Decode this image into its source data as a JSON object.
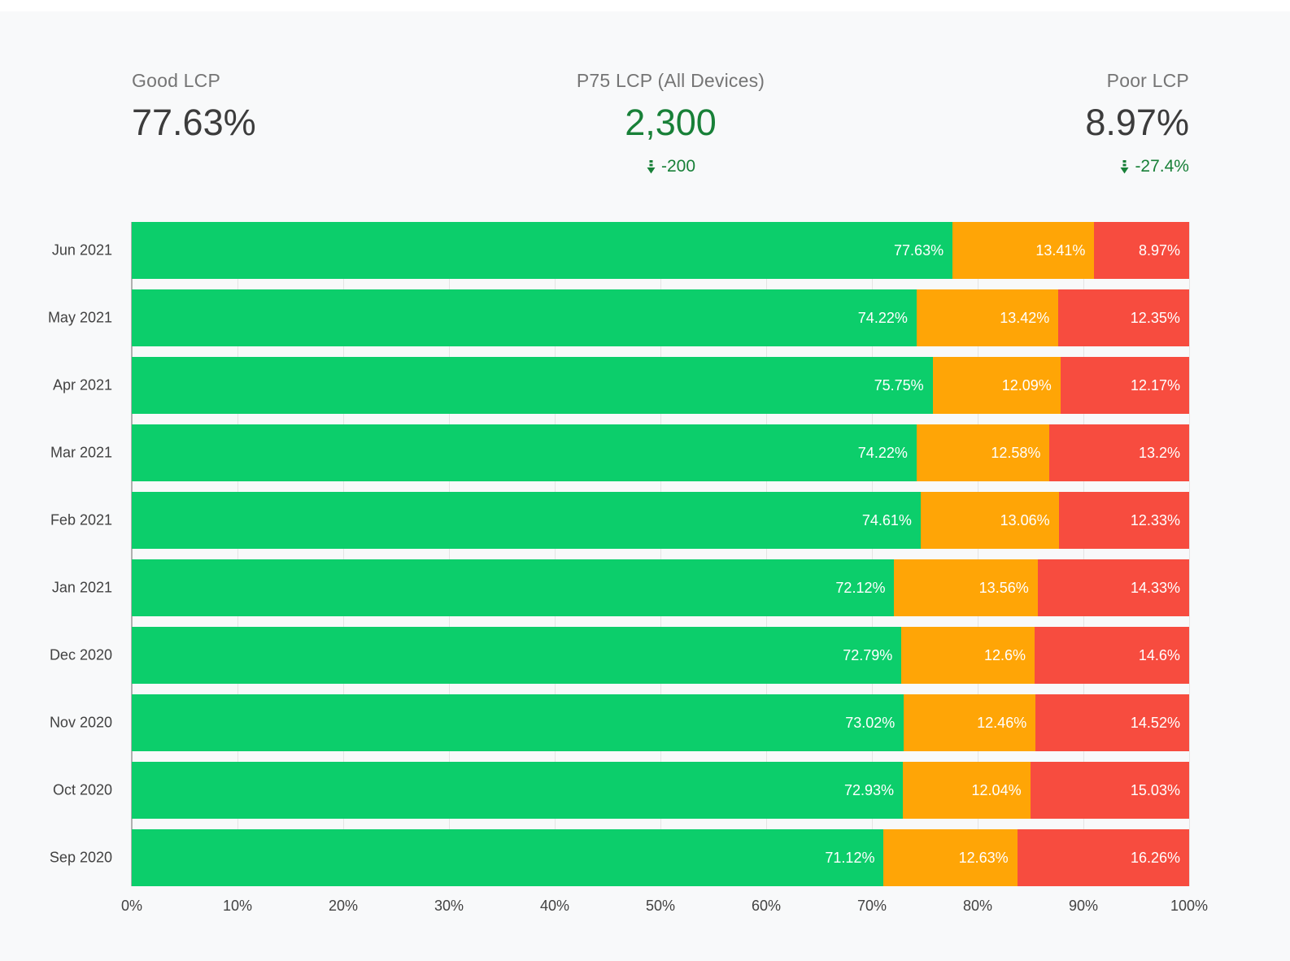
{
  "scorecards": [
    {
      "label": "Good LCP",
      "value": "77.63%"
    },
    {
      "label": "P75 LCP (All Devices)",
      "value": "2,300",
      "delta": "-200"
    },
    {
      "label": "Poor LCP",
      "value": "8.97%",
      "delta": "-27.4%"
    }
  ],
  "colors": {
    "good": "#0cce6b",
    "needs_improvement": "#ffa506",
    "poor": "#f74c3f",
    "delta_green": "#188038",
    "background": "#f8f9fa"
  },
  "chart_data": {
    "type": "bar",
    "orientation": "horizontal",
    "stacked": true,
    "grid": true,
    "legend": "none",
    "xlim": [
      0,
      100
    ],
    "categories": [
      "Jun 2021",
      "May 2021",
      "Apr 2021",
      "Mar 2021",
      "Feb 2021",
      "Jan 2021",
      "Dec 2020",
      "Nov 2020",
      "Oct 2020",
      "Sep 2020"
    ],
    "series": [
      {
        "name": "Good",
        "key": "good",
        "color": "#0cce6b",
        "values": [
          77.63,
          74.22,
          75.75,
          74.22,
          74.61,
          72.12,
          72.79,
          73.02,
          72.93,
          71.12
        ]
      },
      {
        "name": "Needs Improvement",
        "key": "needs-improvement",
        "color": "#ffa506",
        "values": [
          13.41,
          13.42,
          12.09,
          12.58,
          13.06,
          13.56,
          12.6,
          12.46,
          12.04,
          12.63
        ]
      },
      {
        "name": "Poor",
        "key": "poor",
        "color": "#f74c3f",
        "values": [
          8.97,
          12.35,
          12.17,
          13.2,
          12.33,
          14.33,
          14.6,
          14.52,
          15.03,
          16.26
        ]
      }
    ],
    "x_ticks": [
      "0%",
      "10%",
      "20%",
      "30%",
      "40%",
      "50%",
      "60%",
      "70%",
      "80%",
      "90%",
      "100%"
    ]
  }
}
